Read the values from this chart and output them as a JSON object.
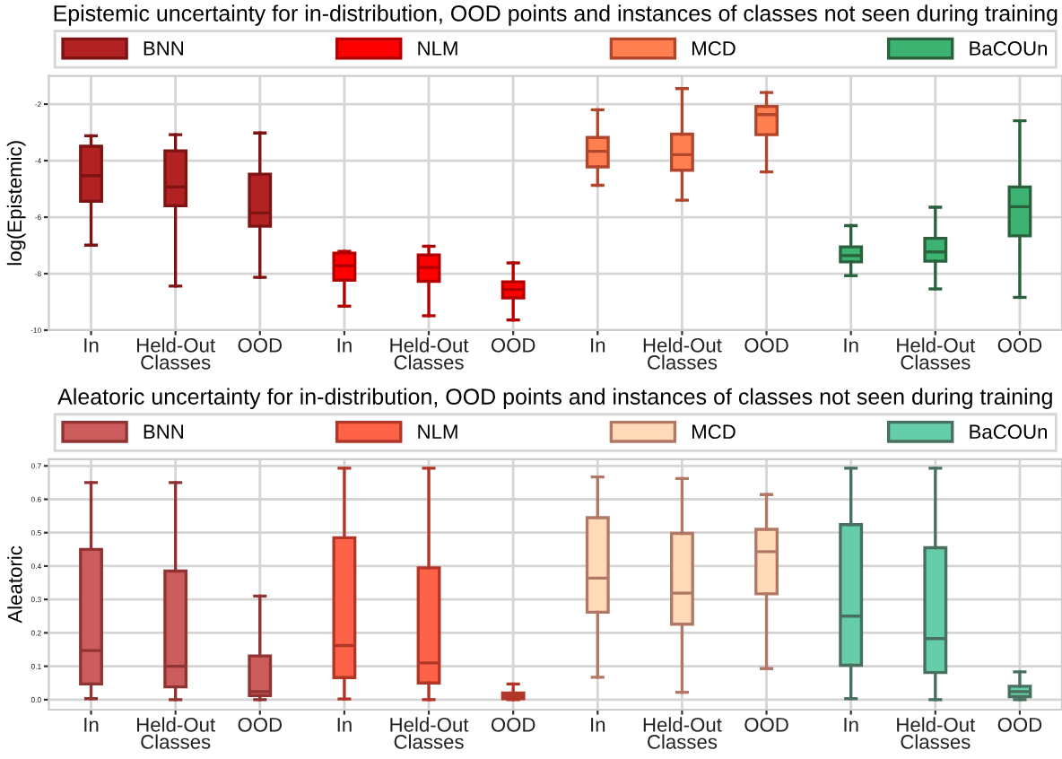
{
  "chart_data": [
    {
      "type": "box",
      "title": "Epistemic uncertainty for in-distribution, OOD points and instances of classes not seen during training",
      "ylabel": "log(Epistemic)",
      "categories": [
        "In",
        "Held-Out\nClasses",
        "OOD",
        "In",
        "Held-Out\nClasses",
        "OOD",
        "In",
        "Held-Out\nClasses",
        "OOD",
        "In",
        "Held-Out\nClasses",
        "OOD"
      ],
      "ylim": [
        -10,
        -1
      ],
      "yticks": [
        -2,
        -4,
        -6,
        -8,
        -10
      ],
      "grid": true,
      "legend": "top",
      "series": [
        {
          "name": "BNN",
          "color": "#b22222",
          "boxes": [
            {
              "low": -6.99,
              "q1": -5.44,
              "median": -4.53,
              "q3": -3.49,
              "high": -3.12
            },
            {
              "low": -8.44,
              "q1": -5.6,
              "median": -4.93,
              "q3": -3.65,
              "high": -3.08
            },
            {
              "low": -8.13,
              "q1": -6.32,
              "median": -5.85,
              "q3": -4.48,
              "high": -3.02
            },
            null,
            null,
            null,
            null,
            null,
            null,
            null,
            null,
            null
          ]
        },
        {
          "name": "NLM",
          "color": "#ff0000",
          "boxes": [
            null,
            null,
            null,
            {
              "low": -9.15,
              "q1": -8.23,
              "median": -7.72,
              "q3": -7.27,
              "high": -7.21
            },
            {
              "low": -9.49,
              "q1": -8.27,
              "median": -7.78,
              "q3": -7.34,
              "high": -7.03
            },
            {
              "low": -9.64,
              "q1": -8.86,
              "median": -8.56,
              "q3": -8.29,
              "high": -7.62
            },
            null,
            null,
            null,
            null,
            null,
            null
          ]
        },
        {
          "name": "MCD",
          "color": "#ff7f50",
          "boxes": [
            null,
            null,
            null,
            null,
            null,
            null,
            {
              "low": -4.87,
              "q1": -4.22,
              "median": -3.67,
              "q3": -3.18,
              "high": -2.2
            },
            {
              "low": -5.4,
              "q1": -4.34,
              "median": -3.79,
              "q3": -3.06,
              "high": -1.45
            },
            {
              "low": -4.4,
              "q1": -3.08,
              "median": -2.37,
              "q3": -2.08,
              "high": -1.59
            },
            null,
            null,
            null
          ]
        },
        {
          "name": "BaCOUn",
          "color": "#3cb371",
          "boxes": [
            null,
            null,
            null,
            null,
            null,
            null,
            null,
            null,
            null,
            {
              "low": -8.07,
              "q1": -7.58,
              "median": -7.36,
              "q3": -7.05,
              "high": -6.3
            },
            {
              "low": -8.54,
              "q1": -7.56,
              "median": -7.23,
              "q3": -6.75,
              "high": -5.65
            },
            {
              "low": -8.84,
              "q1": -6.66,
              "median": -5.63,
              "q3": -4.93,
              "high": -2.59
            }
          ]
        }
      ]
    },
    {
      "type": "box",
      "title": "Aleatoric uncertainty for in-distribution, OOD points and instances of classes not seen during training",
      "ylabel": "Aleatoric",
      "categories": [
        "In",
        "Held-Out\nClasses",
        "OOD",
        "In",
        "Held-Out\nClasses",
        "OOD",
        "In",
        "Held-Out\nClasses",
        "OOD",
        "In",
        "Held-Out\nClasses",
        "OOD"
      ],
      "ylim": [
        -0.03,
        0.72
      ],
      "yticks": [
        {
          "value": 0,
          "label": "0.0"
        },
        {
          "value": 0.1,
          "label": "0.1"
        },
        {
          "value": 0.2,
          "label": "0.2"
        },
        {
          "value": 0.3,
          "label": "0.3"
        },
        {
          "value": 0.4,
          "label": "0.4"
        },
        {
          "value": 0.5,
          "label": "0.5"
        },
        {
          "value": 0.6,
          "label": "0.6"
        },
        {
          "value": 0.7,
          "label": "0.7"
        }
      ],
      "grid": true,
      "legend": "top",
      "series": [
        {
          "name": "BNN",
          "color": "#cd5c5c",
          "boxes": [
            {
              "low": 0.003,
              "q1": 0.047,
              "median": 0.147,
              "q3": 0.45,
              "high": 0.65
            },
            {
              "low": 0,
              "q1": 0.038,
              "median": 0.1,
              "q3": 0.385,
              "high": 0.65
            },
            {
              "low": 0,
              "q1": 0.012,
              "median": 0.024,
              "q3": 0.131,
              "high": 0.31
            },
            null,
            null,
            null,
            null,
            null,
            null,
            null,
            null,
            null
          ]
        },
        {
          "name": "NLM",
          "color": "#ff6347",
          "boxes": [
            null,
            null,
            null,
            {
              "low": 0.002,
              "q1": 0.066,
              "median": 0.162,
              "q3": 0.485,
              "high": 0.693
            },
            {
              "low": 0,
              "q1": 0.05,
              "median": 0.11,
              "q3": 0.395,
              "high": 0.693
            },
            {
              "low": 0,
              "q1": 0.003,
              "median": 0.012,
              "q3": 0.02,
              "high": 0.047
            },
            null,
            null,
            null,
            null,
            null,
            null
          ]
        },
        {
          "name": "MCD",
          "color": "#ffdab9",
          "boxes": [
            null,
            null,
            null,
            null,
            null,
            null,
            {
              "low": 0.067,
              "q1": 0.262,
              "median": 0.364,
              "q3": 0.545,
              "high": 0.667
            },
            {
              "low": 0.022,
              "q1": 0.226,
              "median": 0.319,
              "q3": 0.498,
              "high": 0.662
            },
            {
              "low": 0.093,
              "q1": 0.317,
              "median": 0.443,
              "q3": 0.51,
              "high": 0.614
            },
            null,
            null,
            null
          ]
        },
        {
          "name": "BaCOUn",
          "color": "#66cdaa",
          "boxes": [
            null,
            null,
            null,
            null,
            null,
            null,
            null,
            null,
            null,
            {
              "low": 0.003,
              "q1": 0.103,
              "median": 0.25,
              "q3": 0.524,
              "high": 0.693
            },
            {
              "low": 0,
              "q1": 0.081,
              "median": 0.183,
              "q3": 0.455,
              "high": 0.693
            },
            {
              "low": 0,
              "q1": 0.009,
              "median": 0.024,
              "q3": 0.04,
              "high": 0.083
            }
          ]
        }
      ]
    }
  ]
}
